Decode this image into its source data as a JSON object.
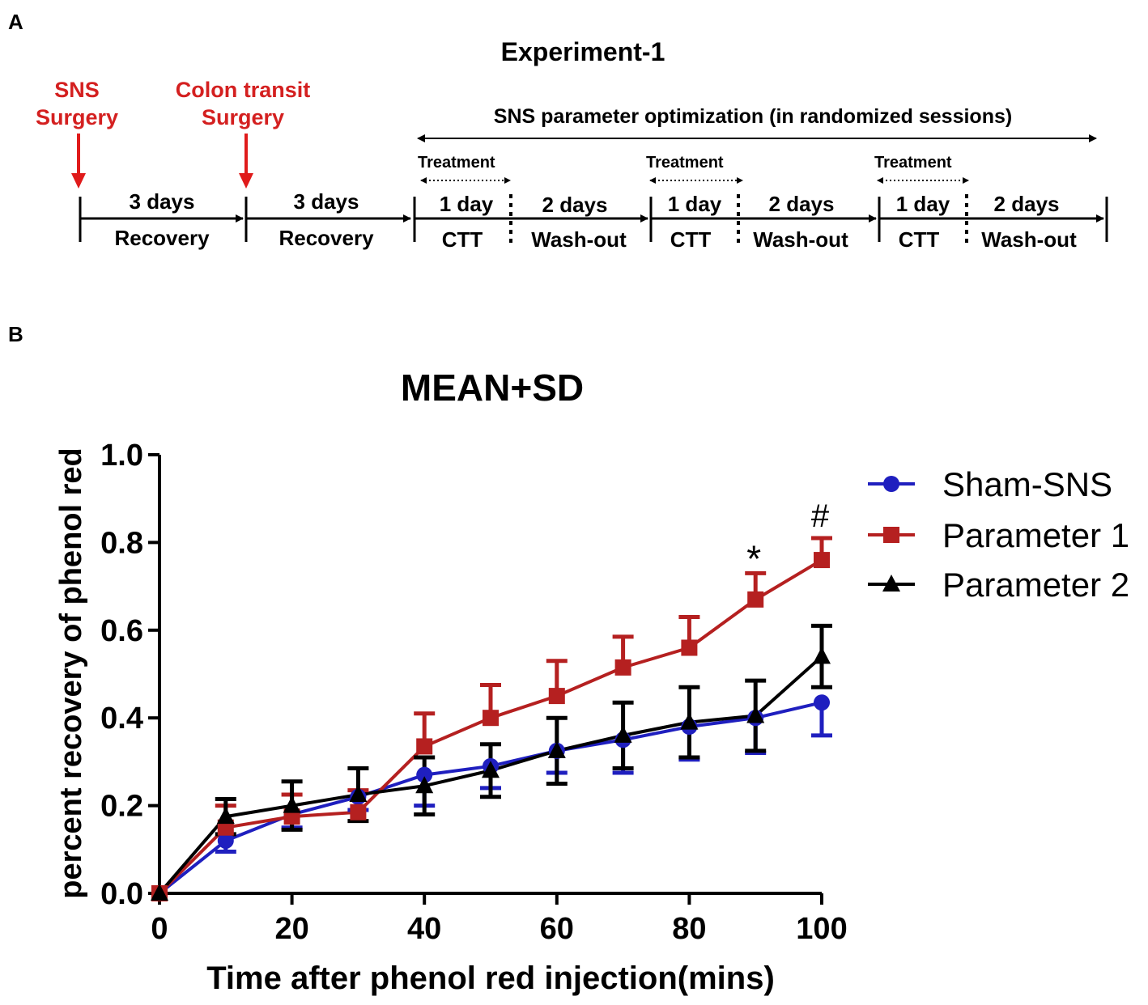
{
  "panel_a": {
    "letter": "A",
    "title": "Experiment-1",
    "events": [
      {
        "id": "sns",
        "line1": "SNS",
        "line2": "Surgery"
      },
      {
        "id": "colon",
        "line1": "Colon transit",
        "line2": "Surgery"
      }
    ],
    "span_label": "SNS parameter optimization (in randomized sessions)",
    "recovery_segments": [
      {
        "top": "3 days",
        "bottom": "Recovery"
      },
      {
        "top": "3 days",
        "bottom": "Recovery"
      }
    ],
    "sessions": [
      {
        "treatment": "Treatment",
        "day_top": "1 day",
        "day_bottom": "CTT",
        "wash_top": "2 days",
        "wash_bottom": "Wash-out"
      },
      {
        "treatment": "Treatment",
        "day_top": "1 day",
        "day_bottom": "CTT",
        "wash_top": "2 days",
        "wash_bottom": "Wash-out"
      },
      {
        "treatment": "Treatment",
        "day_top": "1 day",
        "day_bottom": "CTT",
        "wash_top": "2 days",
        "wash_bottom": "Wash-out"
      }
    ],
    "colors": {
      "event": "#d42020",
      "line": "#000000"
    }
  },
  "panel_b": {
    "letter": "B"
  },
  "chart_data": {
    "type": "line",
    "title": "MEAN+SD",
    "xlabel": "Time after phenol red injection(mins)",
    "ylabel": "percent recovery of phenol red",
    "xlim": [
      0,
      100
    ],
    "ylim": [
      0,
      1.0
    ],
    "xticks": [
      0,
      20,
      40,
      60,
      80,
      100
    ],
    "yticks": [
      0.0,
      0.2,
      0.4,
      0.6,
      0.8,
      1.0
    ],
    "ytick_labels": [
      "0.0",
      "0.2",
      "0.4",
      "0.6",
      "0.8",
      "1.0"
    ],
    "grid": false,
    "legend_position": "right",
    "x": [
      0,
      10,
      20,
      30,
      40,
      50,
      60,
      70,
      80,
      90,
      100
    ],
    "series": [
      {
        "name": "Sham-SNS",
        "color": "#1f1fbf",
        "marker": "circle",
        "values": [
          0.0,
          0.12,
          0.18,
          0.22,
          0.27,
          0.29,
          0.325,
          0.35,
          0.38,
          0.4,
          0.435
        ],
        "sd": [
          0.0,
          0.025,
          0.03,
          0.03,
          0.07,
          0.05,
          0.05,
          0.075,
          0.075,
          0.08,
          0.075
        ]
      },
      {
        "name": "Parameter 1",
        "color": "#b52020",
        "marker": "square",
        "values": [
          0.0,
          0.15,
          0.175,
          0.185,
          0.335,
          0.4,
          0.45,
          0.515,
          0.56,
          0.67,
          0.76
        ],
        "sd": [
          0.0,
          0.05,
          0.05,
          0.05,
          0.075,
          0.075,
          0.08,
          0.07,
          0.07,
          0.06,
          0.05
        ]
      },
      {
        "name": "Parameter 2",
        "color": "#000000",
        "marker": "triangle",
        "values": [
          0.0,
          0.175,
          0.2,
          0.225,
          0.245,
          0.28,
          0.325,
          0.36,
          0.39,
          0.405,
          0.54
        ],
        "sd": [
          0.0,
          0.04,
          0.055,
          0.06,
          0.065,
          0.06,
          0.075,
          0.075,
          0.08,
          0.08,
          0.07
        ]
      }
    ],
    "annotations": [
      {
        "text": "*",
        "x": 90,
        "series": "Parameter 1"
      },
      {
        "text": "#",
        "x": 100,
        "series": "Parameter 1"
      }
    ]
  }
}
